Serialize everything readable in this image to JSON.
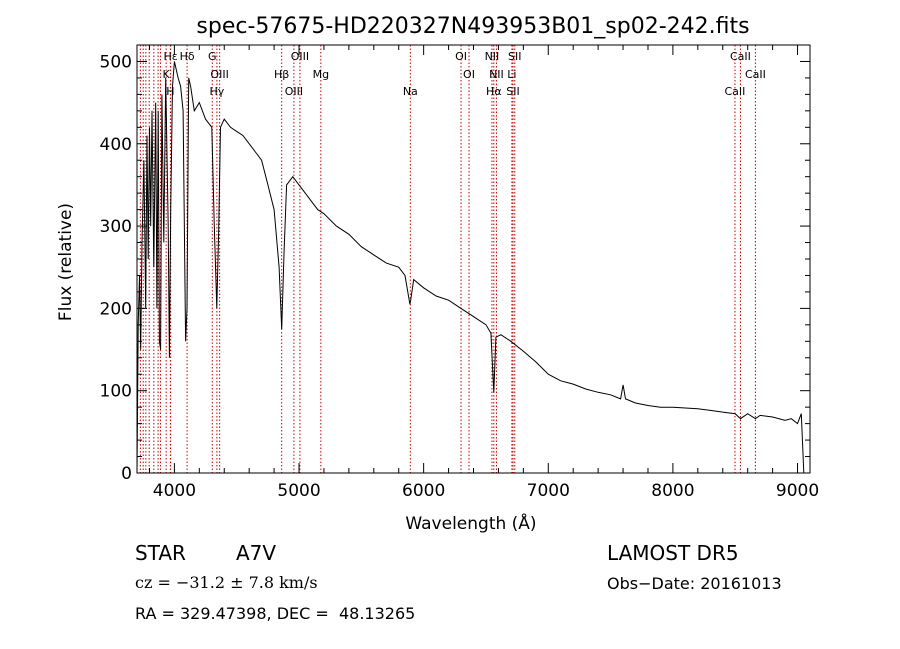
{
  "chart_data": {
    "type": "line",
    "title": "spec-57675-HD220327N493953B01_sp02-242.fits",
    "xlabel": "Wavelength (Å)",
    "ylabel": "Flux (relative)",
    "xlim": [
      3700,
      9100
    ],
    "ylim": [
      0,
      520
    ],
    "xticks": [
      4000,
      5000,
      6000,
      7000,
      8000,
      9000
    ],
    "yticks": [
      0,
      100,
      200,
      300,
      400,
      500
    ],
    "grid": false,
    "series": [
      {
        "x": [
          3700,
          3710,
          3720,
          3730,
          3740,
          3755,
          3770,
          3780,
          3790,
          3800,
          3810,
          3820,
          3835,
          3850,
          3860,
          3870,
          3880,
          3889,
          3900,
          3915,
          3930,
          3950,
          3960,
          3970,
          3985,
          4000,
          4015,
          4030,
          4050,
          4070,
          4090,
          4101,
          4115,
          4130,
          4160,
          4200,
          4250,
          4300,
          4320,
          4340,
          4355,
          4370,
          4400,
          4450,
          4500,
          4550,
          4600,
          4650,
          4700,
          4750,
          4800,
          4840,
          4861,
          4880,
          4900,
          4950,
          5000,
          5050,
          5100,
          5150,
          5200,
          5300,
          5400,
          5500,
          5600,
          5700,
          5800,
          5850,
          5890,
          5896,
          5920,
          6000,
          6100,
          6200,
          6300,
          6400,
          6500,
          6540,
          6563,
          6580,
          6620,
          6700,
          6800,
          6900,
          7000,
          7100,
          7200,
          7300,
          7400,
          7500,
          7580,
          7600,
          7620,
          7700,
          7800,
          7900,
          8000,
          8100,
          8200,
          8300,
          8400,
          8500,
          8542,
          8600,
          8662,
          8700,
          8800,
          8900,
          8950,
          9000,
          9030,
          9050
        ],
        "y": [
          0,
          180,
          240,
          150,
          280,
          380,
          200,
          410,
          260,
          420,
          300,
          440,
          250,
          450,
          200,
          440,
          160,
          150,
          460,
          280,
          480,
          300,
          140,
          320,
          470,
          500,
          490,
          480,
          470,
          440,
          160,
          200,
          480,
          470,
          440,
          450,
          430,
          420,
          300,
          200,
          290,
          420,
          430,
          420,
          415,
          410,
          400,
          390,
          380,
          350,
          320,
          250,
          175,
          270,
          350,
          360,
          350,
          340,
          330,
          320,
          315,
          300,
          290,
          275,
          265,
          255,
          250,
          240,
          205,
          210,
          235,
          225,
          215,
          210,
          200,
          190,
          180,
          170,
          98,
          165,
          168,
          160,
          148,
          135,
          120,
          112,
          108,
          102,
          98,
          95,
          90,
          107,
          90,
          85,
          82,
          80,
          80,
          79,
          78,
          76,
          74,
          72,
          66,
          72,
          66,
          70,
          68,
          64,
          66,
          60,
          72,
          0
        ]
      }
    ],
    "lines": [
      {
        "label": "Hε",
        "x": 3970
      },
      {
        "label": "K",
        "x": 3934
      },
      {
        "label": "H",
        "x": 3968
      },
      {
        "label": "Hδ",
        "x": 4102
      },
      {
        "label": "OIII",
        "x": 4363
      },
      {
        "label": "Hγ",
        "x": 4341
      },
      {
        "label": "G",
        "x": 4304
      },
      {
        "label": "Hβ",
        "x": 4861
      },
      {
        "label": "OIII",
        "x": 4959
      },
      {
        "label": "OIII",
        "x": 5007
      },
      {
        "label": "Mg",
        "x": 5175
      },
      {
        "label": "Na",
        "x": 5893
      },
      {
        "label": "OI",
        "x": 6300
      },
      {
        "label": "OI",
        "x": 6364
      },
      {
        "label": "Hα",
        "x": 6563
      },
      {
        "label": "NII",
        "x": 6548
      },
      {
        "label": "NII",
        "x": 6584
      },
      {
        "label": "SII",
        "x": 6717
      },
      {
        "label": "SII",
        "x": 6731
      },
      {
        "label": "Li",
        "x": 6708
      },
      {
        "label": "CaII",
        "x": 8498
      },
      {
        "label": "CaII",
        "x": 8542
      },
      {
        "label": "CaII",
        "x": 8662
      }
    ],
    "extra_lines_x": [
      3727,
      3750,
      3771,
      3798,
      3835,
      3869,
      3889
    ]
  },
  "info": {
    "class_label": "STAR",
    "subclass": "A7V",
    "survey": "LAMOST DR5",
    "cz": "cz = −31.2 ± 7.8 km/s",
    "obs_date": "Obs−Date: 20161013",
    "coords": "RA = 329.47398, DEC =  48.13265"
  },
  "colors": {
    "spectrum": "#000000",
    "line_markers": "#cc0000"
  }
}
